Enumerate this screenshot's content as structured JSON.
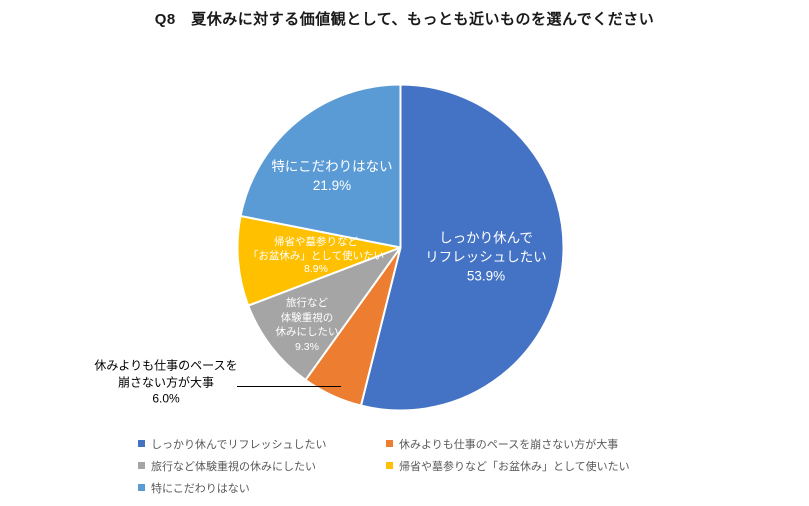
{
  "title": "Q8　夏休みに対する価値観として、もっとも近いものを選んでください",
  "chart_data": {
    "type": "pie",
    "title": "Q8　夏休みに対する価値観として、もっとも近いものを選んでください",
    "unit": "%",
    "start_angle_deg": 0,
    "direction": "clockwise",
    "legend_position": "bottom",
    "slices": [
      {
        "label": "しっかり休んでリフレッシュしたい",
        "value": 53.9,
        "color": "#4472C4",
        "label_color": "#ffffff",
        "label_position": "inside"
      },
      {
        "label": "休みよりも仕事のペースを崩さない方が大事",
        "value": 6.0,
        "color": "#ED7D31",
        "label_color": "#000000",
        "label_position": "outside-left-with-leader-line"
      },
      {
        "label": "旅行など体験重視の休みにしたい",
        "value": 9.3,
        "color": "#A5A5A5",
        "label_color": "#ffffff",
        "label_position": "inside"
      },
      {
        "label": "帰省や墓参りなど「お盆休み」として使いたい",
        "value": 8.9,
        "color": "#FFC000",
        "label_color": "#ffffff",
        "label_position": "inside"
      },
      {
        "label": "特にこだわりはない",
        "value": 21.9,
        "color": "#5B9BD5",
        "label_color": "#ffffff",
        "label_position": "inside"
      }
    ],
    "data_labels": [
      {
        "lines": [
          "しっかり休んで",
          "リフレッシュしたい",
          "53.9%"
        ]
      },
      {
        "lines": [
          "休みよりも仕事のペースを",
          "崩さない方が大事",
          "6.0%"
        ]
      },
      {
        "lines": [
          "旅行など",
          "体験重視の",
          "休みにしたい",
          "9.3%"
        ]
      },
      {
        "lines": [
          "帰省や墓参りなど",
          "「お盆休み」として使いたい",
          "8.9%"
        ]
      },
      {
        "lines": [
          "特にこだわりはない",
          "21.9%"
        ]
      }
    ]
  },
  "colors": {
    "slice_border": "#ffffff",
    "title_text": "#1a1a1a",
    "legend_text": "#595959",
    "leader_line": "#000000",
    "background": "#ffffff"
  }
}
